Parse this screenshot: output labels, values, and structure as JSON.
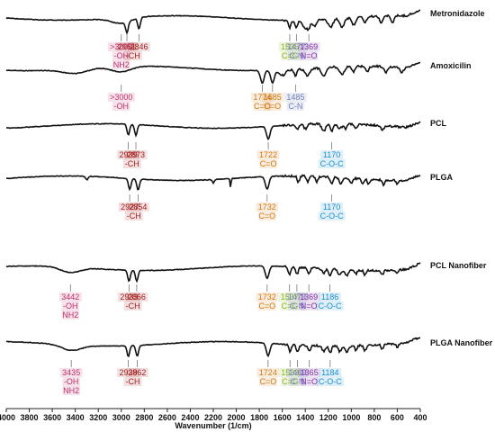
{
  "chart_data": {
    "type": "line",
    "xlabel": "Wavenumber (1/cm)",
    "ylabel": "",
    "xlim": [
      4000,
      400
    ],
    "x_reversed": true,
    "x_ticks": [
      4000,
      3800,
      3600,
      3400,
      3200,
      3000,
      2800,
      2600,
      2400,
      2200,
      2000,
      1800,
      1600,
      1400,
      1200,
      1000,
      800,
      600,
      400
    ],
    "grid": false,
    "legend": "labels at right end of each trace",
    "group_colors": {
      "OH": "#c0306a",
      "CH": "#a32020",
      "C=O": "#d07a12",
      "C=C": "#8ab51f",
      "C-N": "#6e7fb8",
      "N=O": "#7a2fa0",
      "C-O-C": "#1c8fd0"
    },
    "series": [
      {
        "name": "Metronidazole",
        "annotations": [
          {
            "wavenumber": "3000",
            "label": ">3000",
            "group": "OH",
            "lines": [
              ">3000",
              "-OH",
              "NH2"
            ]
          },
          {
            "wavenumber": "2951",
            "label": "2951",
            "group": "CH",
            "lines": [
              "2951"
            ]
          },
          {
            "wavenumber": "2846",
            "label": "2846",
            "group": "CH",
            "lines": [
              "2846"
            ]
          },
          {
            "wavenumber": "1535",
            "label": "1535",
            "group": "C=C",
            "lines": [
              "1535",
              "C=C"
            ]
          },
          {
            "wavenumber": "1477",
            "label": "1477",
            "group": "C-N",
            "lines": [
              "1477",
              "C-N"
            ]
          },
          {
            "wavenumber": "1369",
            "label": "1369",
            "group": "N=O",
            "lines": [
              "1369",
              "N=O"
            ]
          }
        ],
        "group_text": [
          {
            "text": "-CH",
            "group": "CH"
          }
        ]
      },
      {
        "name": "Amoxicilin",
        "annotations": [
          {
            "wavenumber": "3000",
            "label": ">3000",
            "group": "OH",
            "lines": [
              ">3000",
              "-OH"
            ]
          },
          {
            "wavenumber": "1774",
            "label": "1774",
            "group": "C=O",
            "lines": [
              "1774",
              "C=O"
            ]
          },
          {
            "wavenumber": "1685",
            "label": "1685",
            "group": "C=O",
            "lines": [
              "1685",
              "C=O"
            ]
          },
          {
            "wavenumber": "1485",
            "label": "1485",
            "group": "C-N",
            "lines": [
              "1485",
              "C-N"
            ]
          }
        ]
      },
      {
        "name": "PCL",
        "annotations": [
          {
            "wavenumber": "2939",
            "label": "2939",
            "group": "CH",
            "lines": [
              "2939"
            ]
          },
          {
            "wavenumber": "2873",
            "label": "2873",
            "group": "CH",
            "lines": [
              "2873"
            ]
          },
          {
            "wavenumber": "1722",
            "label": "1722",
            "group": "C=O",
            "lines": [
              "1722",
              "C=O"
            ]
          },
          {
            "wavenumber": "1170",
            "label": "1170",
            "group": "C-O-C",
            "lines": [
              "1170",
              "C-O-C"
            ]
          }
        ],
        "group_text": [
          {
            "text": "-CH",
            "group": "CH"
          }
        ]
      },
      {
        "name": "PLGA",
        "annotations": [
          {
            "wavenumber": "2927",
            "label": "2927",
            "group": "CH",
            "lines": [
              "2927"
            ]
          },
          {
            "wavenumber": "2854",
            "label": "2854",
            "group": "CH",
            "lines": [
              "2854"
            ]
          },
          {
            "wavenumber": "1732",
            "label": "1732",
            "group": "C=O",
            "lines": [
              "1732",
              "C=O"
            ]
          },
          {
            "wavenumber": "1170",
            "label": "1170",
            "group": "C-O-C",
            "lines": [
              "1170",
              "C-O-C"
            ]
          }
        ],
        "group_text": [
          {
            "text": "-CH",
            "group": "CH"
          }
        ]
      },
      {
        "name": "PCL Nanofiber",
        "annotations": [
          {
            "wavenumber": "3442",
            "label": "3442",
            "group": "OH",
            "lines": [
              "3442",
              "-OH",
              "NH2"
            ]
          },
          {
            "wavenumber": "2933",
            "label": "2933",
            "group": "CH",
            "lines": [
              "2933"
            ]
          },
          {
            "wavenumber": "2866",
            "label": "2866",
            "group": "CH",
            "lines": [
              "2866"
            ]
          },
          {
            "wavenumber": "1732",
            "label": "1732",
            "group": "C=O",
            "lines": [
              "1732",
              "C=O"
            ]
          },
          {
            "wavenumber": "1537",
            "label": "1537",
            "group": "C=C",
            "lines": [
              "1537",
              "C=C"
            ]
          },
          {
            "wavenumber": "1473",
            "label": "1473",
            "group": "C-N",
            "lines": [
              "1473",
              "C-N"
            ]
          },
          {
            "wavenumber": "1369",
            "label": "1369",
            "group": "N=O",
            "lines": [
              "1369",
              "N=O"
            ]
          },
          {
            "wavenumber": "1186",
            "label": "1186",
            "group": "C-O-C",
            "lines": [
              "1186",
              "C-O-C"
            ]
          }
        ],
        "group_text": [
          {
            "text": "-CH",
            "group": "CH"
          }
        ]
      },
      {
        "name": "PLGA Nanofiber",
        "annotations": [
          {
            "wavenumber": "3435",
            "label": "3435",
            "group": "OH",
            "lines": [
              "3435",
              "-OH",
              "NH2"
            ]
          },
          {
            "wavenumber": "2939",
            "label": "2939",
            "group": "CH",
            "lines": [
              "2939"
            ]
          },
          {
            "wavenumber": "2862",
            "label": "2862",
            "group": "CH",
            "lines": [
              "2862"
            ]
          },
          {
            "wavenumber": "1724",
            "label": "1724",
            "group": "C=O",
            "lines": [
              "1724",
              "C=O"
            ]
          },
          {
            "wavenumber": "1533",
            "label": "1533",
            "group": "C=C",
            "lines": [
              "1533",
              "C=C"
            ]
          },
          {
            "wavenumber": "1469",
            "label": "1469",
            "group": "C-N",
            "lines": [
              "1469",
              "C-N"
            ]
          },
          {
            "wavenumber": "1365",
            "label": "1365",
            "group": "N=O",
            "lines": [
              "1365",
              "N=O"
            ]
          },
          {
            "wavenumber": "1184",
            "label": "1184",
            "group": "C-O-C",
            "lines": [
              "1184",
              "C-O-C"
            ]
          }
        ],
        "group_text": [
          {
            "text": "-CH",
            "group": "CH"
          }
        ]
      }
    ]
  }
}
